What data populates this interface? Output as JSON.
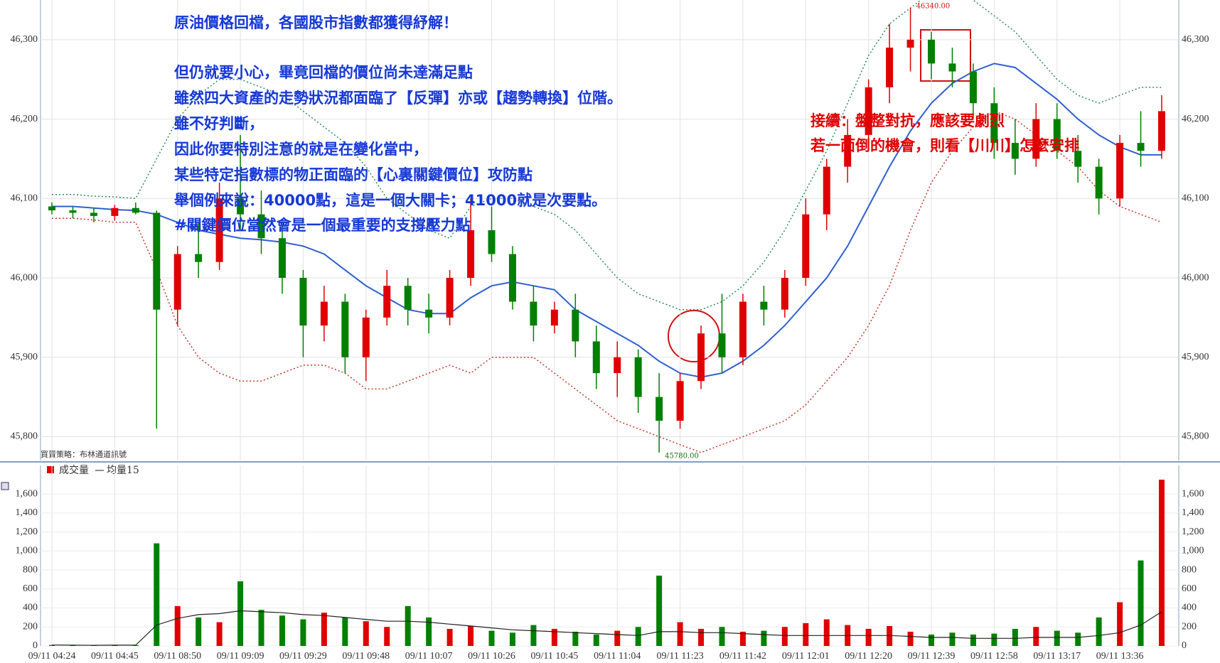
{
  "chart_data": [
    {
      "type": "candlestick",
      "notes": [
        "原油價格回檔，各國股市指數都獲得紓解！",
        "但仍就要小心，畢竟回檔的價位尚未達滿足點",
        "雖然四大資產的走勢狀況都面臨了【反彈】亦或【趨勢轉換】位階。",
        "雖不好判斷，",
        "因此你要特別注意的就是在變化當中，",
        "某些特定指數標的物正面臨的【心裏關鍵價位】攻防點",
        "舉個例來說：40000點，這是一個大關卡；41000就是次要點。",
        "#關鍵價位當然會是一個最重要的支撐壓力點"
      ],
      "notes_color": "#1638d6",
      "red_notes": [
        "接續：盤整對抗，應該要劇烈",
        "若一面倒的機會，則看【川川】怎麼安排"
      ],
      "red_notes_color": "#e00000",
      "high_label": "46340.00",
      "low_label": "45780.00",
      "strategy_label": "買賣策略：布林通道訊號",
      "up_color": "#e00000",
      "down_color": "#008000",
      "open": [
        46090,
        46085,
        46082,
        46078,
        46088,
        46082,
        45960,
        46030,
        46020,
        46100,
        46080,
        46050,
        46000,
        45940,
        45970,
        45900,
        45950,
        45990,
        45960,
        45950,
        46000,
        46060,
        46030,
        45970,
        45940,
        45960,
        45920,
        45880,
        45900,
        45850,
        45820,
        45870,
        45930,
        45900,
        45970,
        45960,
        46000,
        46080,
        46140,
        46180,
        46240,
        46290,
        46300,
        46270,
        46260,
        46220,
        46170,
        46150,
        46200,
        46160,
        46140,
        46100,
        46170,
        46160
      ],
      "high": [
        46095,
        46090,
        46088,
        46092,
        46095,
        46085,
        46040,
        46070,
        46120,
        46180,
        46110,
        46070,
        46010,
        45990,
        45980,
        45960,
        46010,
        46000,
        45980,
        46010,
        46100,
        46090,
        46040,
        45990,
        45970,
        45980,
        45940,
        45920,
        45910,
        45880,
        45880,
        45940,
        45980,
        45980,
        45990,
        46010,
        46100,
        46150,
        46200,
        46250,
        46320,
        46340,
        46310,
        46290,
        46270,
        46240,
        46200,
        46220,
        46220,
        46180,
        46150,
        46180,
        46210,
        46230
      ],
      "low": [
        46080,
        46075,
        46070,
        46072,
        46080,
        45810,
        45940,
        46000,
        46010,
        46060,
        46030,
        45980,
        45900,
        45920,
        45880,
        45870,
        45940,
        45940,
        45930,
        45940,
        45990,
        46020,
        45960,
        45920,
        45930,
        45900,
        45860,
        45850,
        45830,
        45780,
        45810,
        45860,
        45880,
        45890,
        45940,
        45950,
        45990,
        46060,
        46120,
        46160,
        46220,
        46260,
        46250,
        46240,
        46200,
        46150,
        46130,
        46140,
        46150,
        46120,
        46080,
        46090,
        46140,
        46150
      ],
      "close": [
        46085,
        46082,
        46078,
        46088,
        46082,
        45960,
        46030,
        46020,
        46100,
        46080,
        46050,
        46000,
        45940,
        45970,
        45900,
        45950,
        45990,
        45960,
        45950,
        46000,
        46060,
        46030,
        45970,
        45940,
        45960,
        45920,
        45880,
        45900,
        45850,
        45820,
        45870,
        45930,
        45900,
        45970,
        45960,
        46000,
        46080,
        46140,
        46180,
        46240,
        46290,
        46300,
        46270,
        46260,
        46220,
        46170,
        46150,
        46200,
        46160,
        46140,
        46100,
        46170,
        46160,
        46210
      ],
      "lines": [
        {
          "color": "#2f5fd0",
          "style": "solid",
          "values": [
            46090,
            46090,
            46088,
            46086,
            46085,
            46080,
            46070,
            46060,
            46055,
            46050,
            46048,
            46045,
            46040,
            46030,
            46010,
            45990,
            45975,
            45960,
            45955,
            45955,
            45975,
            45990,
            45995,
            45990,
            45985,
            45960,
            45945,
            45930,
            45915,
            45895,
            45880,
            45875,
            45880,
            45895,
            45915,
            45940,
            45970,
            46000,
            46040,
            46090,
            46140,
            46185,
            46220,
            46245,
            46260,
            46270,
            46265,
            46245,
            46225,
            46200,
            46180,
            46165,
            46155,
            46155
          ]
        },
        {
          "color": "#2e8b57",
          "style": "dotted",
          "values": [
            46105,
            46105,
            46103,
            46102,
            46100,
            46150,
            46200,
            46230,
            46250,
            46250,
            46240,
            46230,
            46210,
            46190,
            46170,
            46140,
            46100,
            46080,
            46060,
            46050,
            46090,
            46100,
            46100,
            46090,
            46080,
            46060,
            46030,
            46000,
            45980,
            45970,
            45960,
            45960,
            45970,
            45990,
            46020,
            46060,
            46110,
            46160,
            46220,
            46280,
            46320,
            46340,
            46360,
            46360,
            46350,
            46330,
            46310,
            46280,
            46250,
            46230,
            46220,
            46230,
            46240,
            46240
          ]
        },
        {
          "color": "#c0392b",
          "style": "dotted",
          "values": [
            46075,
            46075,
            46073,
            46070,
            46070,
            46010,
            45940,
            45900,
            45880,
            45870,
            45870,
            45880,
            45890,
            45890,
            45880,
            45860,
            45860,
            45870,
            45880,
            45890,
            45880,
            45900,
            45900,
            45900,
            45880,
            45860,
            45840,
            45820,
            45810,
            45800,
            45790,
            45780,
            45790,
            45800,
            45810,
            45820,
            45840,
            45870,
            45900,
            45940,
            45990,
            46060,
            46120,
            46160,
            46190,
            46210,
            46200,
            46180,
            46160,
            46140,
            46110,
            46090,
            46080,
            46070
          ]
        }
      ],
      "ylim": [
        45770,
        46350
      ],
      "yticks": [
        {
          "value": 45800,
          "label": "45,800"
        },
        {
          "value": 45900,
          "label": "45,900"
        },
        {
          "value": 46000,
          "label": "46,000"
        },
        {
          "value": 46100,
          "label": "46,100"
        },
        {
          "value": 46200,
          "label": "46,200"
        },
        {
          "value": 46300,
          "label": "46,300"
        }
      ],
      "grid": true
    },
    {
      "type": "bar",
      "legend_volume": "成交量",
      "legend_ma": "均量15",
      "categories": [
        "09/11 04:24",
        null,
        null,
        "09/11 04:45",
        null,
        null,
        "09/11 08:50",
        null,
        null,
        "09/11 09:09",
        null,
        null,
        "09/11 09:29",
        null,
        null,
        "09/11 09:48",
        null,
        null,
        "09/11 10:07",
        null,
        null,
        "09/11 10:26",
        null,
        null,
        "09/11 10:45",
        null,
        null,
        "09/11 11:04",
        null,
        null,
        "09/11 11:23",
        null,
        null,
        "09/11 11:42",
        null,
        null,
        "09/11 12:01",
        null,
        null,
        "09/11 12:20",
        null,
        null,
        "09/11 12:39",
        null,
        null,
        "09/11 12:58",
        null,
        null,
        "09/11 13:17",
        null,
        null,
        "09/11 13:36",
        null,
        null
      ],
      "values": [
        10,
        5,
        5,
        10,
        8,
        1080,
        420,
        300,
        250,
        680,
        380,
        320,
        280,
        350,
        300,
        260,
        200,
        420,
        300,
        180,
        210,
        160,
        140,
        220,
        180,
        150,
        120,
        160,
        200,
        740,
        250,
        180,
        200,
        150,
        160,
        200,
        240,
        280,
        220,
        180,
        210,
        150,
        120,
        140,
        120,
        130,
        180,
        200,
        160,
        140,
        300,
        460,
        900,
        1750
      ],
      "ma": {
        "color": "#222222",
        "values": [
          10,
          8,
          7,
          8,
          8,
          220,
          290,
          330,
          340,
          370,
          360,
          350,
          330,
          320,
          300,
          280,
          260,
          260,
          250,
          230,
          210,
          190,
          170,
          160,
          150,
          140,
          130,
          120,
          110,
          150,
          150,
          140,
          140,
          130,
          120,
          110,
          110,
          110,
          110,
          110,
          110,
          100,
          90,
          90,
          80,
          80,
          80,
          90,
          90,
          90,
          110,
          140,
          220,
          360
        ]
      },
      "ylim": [
        0,
        1900
      ],
      "yticks": [
        0,
        200,
        400,
        600,
        800,
        {
          "value": 1000,
          "label": "1,000"
        },
        {
          "value": 1200,
          "label": "1,200"
        },
        {
          "value": 1400,
          "label": "1,400"
        },
        {
          "value": 1600,
          "label": "1,600"
        }
      ],
      "grid": true
    }
  ]
}
